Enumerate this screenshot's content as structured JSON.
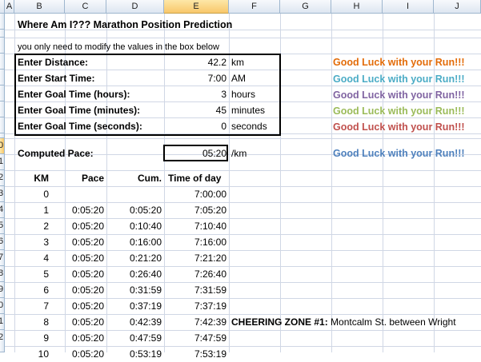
{
  "columns": [
    "A",
    "B",
    "C",
    "D",
    "E",
    "F",
    "G",
    "H",
    "I",
    "J"
  ],
  "rows": [
    "",
    "",
    "",
    "",
    "",
    "",
    "",
    "",
    "",
    "0",
    "1",
    "2",
    "3",
    "4",
    "5",
    "6",
    "7",
    "8",
    "9",
    "0",
    "1",
    "2"
  ],
  "title": "Where Am I??? Marathon Position Prediction",
  "instruction": "you only need to modify the values in the box below",
  "inputs": [
    {
      "label": "Enter Distance:",
      "value": "42.2",
      "unit": "km"
    },
    {
      "label": "Enter Start Time:",
      "value": "7:00",
      "unit": "AM"
    },
    {
      "label": "Enter Goal Time (hours):",
      "value": "3",
      "unit": "hours"
    },
    {
      "label": "Enter Goal Time (minutes):",
      "value": "45",
      "unit": "minutes"
    },
    {
      "label": "Enter Goal Time (seconds):",
      "value": "0",
      "unit": "seconds"
    }
  ],
  "good_luck": [
    {
      "text": "Good Luck with your Run!!!",
      "color": "#e36c09"
    },
    {
      "text": "Good Luck with your Run!!!",
      "color": "#4bacc6"
    },
    {
      "text": "Good Luck with your Run!!!",
      "color": "#8064a2"
    },
    {
      "text": "Good Luck with your Run!!!",
      "color": "#9bbb59"
    },
    {
      "text": "Good Luck with your Run!!!",
      "color": "#c0504d"
    },
    {
      "text": "Good Luck with your Run!!!",
      "color": "#4f81bd"
    }
  ],
  "computed": {
    "label": "Computed Pace:",
    "value": "05:20",
    "unit": "/km"
  },
  "table_headers": {
    "km": "KM",
    "pace": "Pace",
    "cum": "Cum.",
    "tod": "Time of day"
  },
  "table_rows": [
    {
      "km": "0",
      "pace": "",
      "cum": "",
      "tod": "7:00:00"
    },
    {
      "km": "1",
      "pace": "0:05:20",
      "cum": "0:05:20",
      "tod": "7:05:20"
    },
    {
      "km": "2",
      "pace": "0:05:20",
      "cum": "0:10:40",
      "tod": "7:10:40"
    },
    {
      "km": "3",
      "pace": "0:05:20",
      "cum": "0:16:00",
      "tod": "7:16:00"
    },
    {
      "km": "4",
      "pace": "0:05:20",
      "cum": "0:21:20",
      "tod": "7:21:20"
    },
    {
      "km": "5",
      "pace": "0:05:20",
      "cum": "0:26:40",
      "tod": "7:26:40"
    },
    {
      "km": "6",
      "pace": "0:05:20",
      "cum": "0:31:59",
      "tod": "7:31:59"
    },
    {
      "km": "7",
      "pace": "0:05:20",
      "cum": "0:37:19",
      "tod": "7:37:19"
    },
    {
      "km": "8",
      "pace": "0:05:20",
      "cum": "0:42:39",
      "tod": "7:42:39"
    },
    {
      "km": "9",
      "pace": "0:05:20",
      "cum": "0:47:59",
      "tod": "7:47:59"
    },
    {
      "km": "10",
      "pace": "0:05:20",
      "cum": "0:53:19",
      "tod": "7:53:19"
    }
  ],
  "cheering": {
    "label": "CHEERING ZONE #1:",
    "text": " Montcalm St. between Wright"
  }
}
